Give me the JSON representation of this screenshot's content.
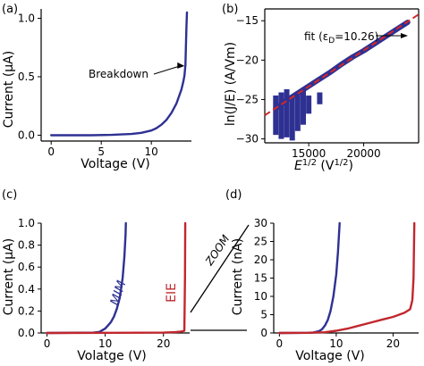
{
  "chart_data": [
    {
      "panel_label": "(a)",
      "type": "line",
      "xlabel": "Voltage (V)",
      "ylabel": "Current (μA)",
      "xlim": [
        -1,
        14
      ],
      "ylim": [
        -0.05,
        1.08
      ],
      "xticks": [
        0,
        5,
        10
      ],
      "yticks": [
        0.0,
        0.5,
        1.0
      ],
      "ytick_labels": [
        "0.0",
        "0.5",
        "1.0"
      ],
      "grid": false,
      "annotation": "Breakdown",
      "annotation_point": [
        13.4,
        0.6
      ],
      "series": [
        {
          "color": "#2e3192",
          "x": [
            0,
            4,
            6,
            8,
            9,
            10,
            10.5,
            11,
            11.5,
            12,
            12.5,
            13,
            13.2,
            13.3,
            13.4,
            13.45,
            13.5,
            13.55
          ],
          "y": [
            0.0,
            0.0,
            0.003,
            0.01,
            0.02,
            0.04,
            0.06,
            0.09,
            0.13,
            0.19,
            0.27,
            0.39,
            0.46,
            0.51,
            0.6,
            0.75,
            0.92,
            1.05
          ]
        }
      ]
    },
    {
      "panel_label": "(b)",
      "type": "scatter",
      "ylabel": "ln(J/E) (A/Vm)",
      "xlabel": "E^1/2 (V^1/2)",
      "xlim": [
        11000,
        25000
      ],
      "ylim": [
        -30.5,
        -13.5
      ],
      "xticks": [
        15000,
        20000
      ],
      "yticks": [
        -30,
        -25,
        -20,
        -15
      ],
      "grid": false,
      "annotation": "fit (εD=10.26)",
      "fit_line": {
        "color": "#d62728",
        "x": [
          11000,
          25000
        ],
        "y": [
          -27.0,
          -14.2
        ]
      },
      "series": [
        {
          "color": "#2e3192",
          "x": [
            12000,
            13000,
            14000,
            15000,
            16000,
            17000,
            18000,
            19000,
            20000,
            21000,
            22000,
            23000,
            24000
          ],
          "y": [
            -26.1,
            -25.1,
            -24.2,
            -23.3,
            -22.4,
            -21.5,
            -20.5,
            -19.6,
            -18.8,
            -17.9,
            -17.0,
            -16.1,
            -15.2
          ]
        },
        {
          "color": "#2e3192",
          "x": [
            12000,
            12500,
            13000,
            13500,
            14000,
            14500,
            15000,
            16000
          ],
          "y": [
            -29.5,
            -30.0,
            -29.8,
            -30.2,
            -29.0,
            -28.2,
            -26.8,
            -25.6
          ]
        }
      ]
    },
    {
      "panel_label": "(c)",
      "type": "line",
      "xlabel": "Volatge (V)",
      "ylabel": "Current (μA)",
      "xlim": [
        -1,
        24.5
      ],
      "ylim": [
        0,
        1.0
      ],
      "xticks": [
        0,
        10,
        20
      ],
      "yticks": [
        0.0,
        0.2,
        0.4,
        0.6,
        0.8,
        1.0
      ],
      "ytick_labels": [
        "0.0",
        "0.2",
        "0.4",
        "0.6",
        "0.8",
        "1.0"
      ],
      "grid": false,
      "series": [
        {
          "name": "MIM",
          "color": "#2e3192",
          "x": [
            0,
            8,
            9,
            10,
            10.5,
            11,
            11.5,
            12,
            12.5,
            13,
            13.3,
            13.5,
            13.55
          ],
          "y": [
            0.0,
            0.003,
            0.01,
            0.04,
            0.07,
            0.1,
            0.15,
            0.22,
            0.32,
            0.5,
            0.7,
            0.9,
            1.0
          ]
        },
        {
          "name": "EIE",
          "color": "#c1272d",
          "x": [
            0,
            20,
            22,
            23,
            23.6,
            23.7,
            23.75
          ],
          "y": [
            0.0,
            0.003,
            0.007,
            0.012,
            0.02,
            0.5,
            1.0
          ]
        }
      ]
    },
    {
      "panel_label": "(d)",
      "type": "line",
      "xlabel": "Voltage (V)",
      "ylabel": "Current (nA)",
      "xlim": [
        -1,
        24.5
      ],
      "ylim": [
        0,
        30
      ],
      "xticks": [
        0,
        10,
        20
      ],
      "yticks": [
        0,
        5,
        10,
        15,
        20,
        25,
        30
      ],
      "grid": false,
      "zoom_label": "ZOOM",
      "series": [
        {
          "color": "#2e3192",
          "x": [
            0,
            5,
            6,
            7,
            7.5,
            8,
            8.5,
            9,
            9.5,
            10,
            10.3,
            10.6
          ],
          "y": [
            0.0,
            0.05,
            0.15,
            0.5,
            1.0,
            2.0,
            3.5,
            6.0,
            10.0,
            16.0,
            22.0,
            30.0
          ]
        },
        {
          "color": "#c1272d",
          "x": [
            0,
            5,
            8,
            10,
            12,
            14,
            16,
            18,
            20,
            22,
            23,
            23.4,
            23.6,
            23.75
          ],
          "y": [
            0.0,
            0.05,
            0.2,
            0.6,
            1.2,
            2.0,
            2.8,
            3.6,
            4.4,
            5.5,
            6.5,
            9.0,
            15.0,
            30.0
          ]
        }
      ]
    }
  ]
}
